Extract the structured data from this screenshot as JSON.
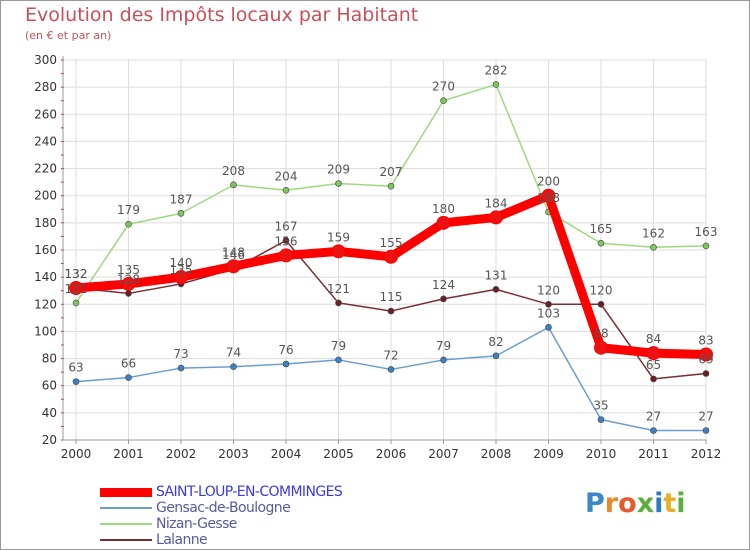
{
  "header": {
    "title": "Evolution des Impôts locaux par Habitant",
    "subtitle": "(en € et par an)"
  },
  "logo": {
    "letters": [
      "P",
      "r",
      "o",
      "x",
      "i",
      "t",
      "i"
    ],
    "colors": [
      "#3a86c8",
      "#e88a2a",
      "#e45a2a",
      "#5ab03a",
      "#2a7ac8",
      "#e8b02a",
      "#5ab03a"
    ]
  },
  "colors": {
    "title": "#c8505a",
    "grid": "#dddddd",
    "axis": "#999999",
    "tick_mark": "#cc2233"
  },
  "chart_data": {
    "type": "line",
    "title": "Evolution des Impôts locaux par Habitant",
    "subtitle": "(en € et par an)",
    "x": [
      "2000",
      "2001",
      "2002",
      "2003",
      "2004",
      "2005",
      "2006",
      "2007",
      "2008",
      "2009",
      "2010",
      "2011",
      "2012"
    ],
    "ylim": [
      20,
      300
    ],
    "yticks": [
      20,
      40,
      60,
      80,
      100,
      120,
      140,
      160,
      180,
      200,
      220,
      240,
      260,
      280,
      300
    ],
    "grid": true,
    "legend_position": "bottom-left",
    "series": [
      {
        "name": "SAINT-LOUP-EN-COMMINGES",
        "color": "#ff0000",
        "marker": "#ee1111",
        "label_color": "#555555",
        "primary": true,
        "values": [
          132,
          135,
          140,
          148,
          156,
          159,
          155,
          180,
          184,
          200,
          88,
          84,
          83
        ]
      },
      {
        "name": "Gensac-de-Boulogne",
        "color": "#6a9ed0",
        "marker": "#3d80c4",
        "label_color": "#555555",
        "primary": false,
        "values": [
          63,
          66,
          73,
          74,
          76,
          79,
          72,
          79,
          82,
          103,
          35,
          27,
          27
        ]
      },
      {
        "name": "Nizan-Gesse",
        "color": "#9ed880",
        "marker": "#7cc65a",
        "label_color": "#555555",
        "primary": false,
        "values": [
          121,
          179,
          187,
          208,
          204,
          209,
          207,
          270,
          282,
          188,
          165,
          162,
          163
        ]
      },
      {
        "name": "Lalanne",
        "color": "#7a2c34",
        "marker": "#6a1e28",
        "label_color": "#555555",
        "primary": false,
        "values": [
          132,
          128,
          135,
          146,
          167,
          121,
          115,
          124,
          131,
          120,
          120,
          65,
          69
        ]
      }
    ]
  }
}
